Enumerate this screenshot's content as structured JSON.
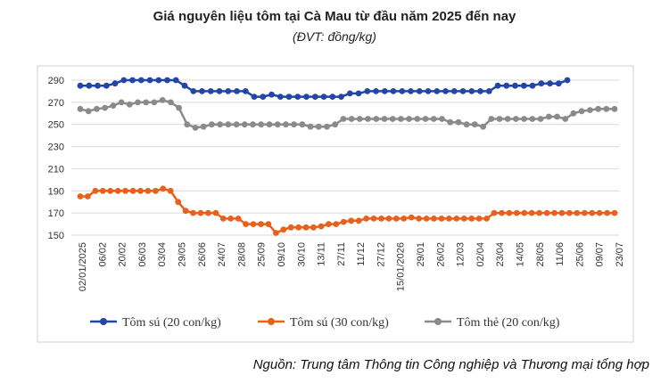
{
  "title": "Giá nguyên liệu tôm tại Cà Mau từ đầu năm 2025 đến nay",
  "subtitle": "(ĐVT: đồng/kg)",
  "source": "Nguồn: Trung tâm Thông tin Công nghiệp và Thương mại tổng hợp",
  "colors": {
    "series1": "#2246a8",
    "series2": "#e8601c",
    "series3": "#8a8a8a",
    "grid": "#d9d9d9",
    "frame": "#d0d0d0"
  },
  "chart_data": {
    "type": "line",
    "title": "Giá nguyên liệu tôm tại Cà Mau từ đầu năm 2025 đến nay",
    "ylabel": "",
    "xlabel": "",
    "ylim": [
      150,
      290
    ],
    "yticks": [
      150,
      170,
      190,
      210,
      230,
      250,
      270,
      290
    ],
    "grid": true,
    "legend_position": "bottom",
    "x_tick_labels": [
      "02/01/2025",
      "06/02",
      "20/02",
      "06/03",
      "03/04",
      "29/05",
      "26/06",
      "24/07",
      "28/08",
      "25/09",
      "09/10",
      "30/10",
      "13/11",
      "27/11",
      "11/12",
      "27/12",
      "15/01/2026",
      "29/01",
      "26/02",
      "12/03",
      "02/04",
      "23/04",
      "14/05",
      "28/05",
      "11/06",
      "25/06",
      "09/07",
      "23/07"
    ],
    "series": [
      {
        "name": "Tôm sú (20 con/kg)",
        "values": [
          285,
          285,
          285,
          285,
          287,
          290,
          290,
          290,
          290,
          290,
          290,
          290,
          285,
          280,
          280,
          280,
          280,
          280,
          280,
          280,
          275,
          275,
          277,
          275,
          275,
          275,
          275,
          275,
          275,
          275,
          275,
          278,
          278,
          280,
          280,
          280,
          280,
          280,
          280,
          280,
          280,
          280,
          280,
          280,
          280,
          280,
          280,
          280,
          285,
          285,
          285,
          285,
          285,
          287,
          287,
          287,
          290
        ]
      },
      {
        "name": "Tôm sú (30 con/kg)",
        "values": [
          185,
          185,
          190,
          190,
          190,
          190,
          190,
          190,
          190,
          190,
          190,
          192,
          190,
          180,
          172,
          170,
          170,
          170,
          170,
          165,
          165,
          165,
          160,
          160,
          160,
          160,
          152,
          155,
          157,
          157,
          157,
          157,
          158,
          160,
          160,
          162,
          163,
          163,
          165,
          165,
          165,
          165,
          165,
          165,
          166,
          165,
          165,
          165,
          165,
          165,
          165,
          165,
          165,
          165,
          165,
          170,
          170,
          170,
          170,
          170,
          170,
          170,
          170,
          170,
          170,
          170,
          170,
          170,
          170,
          170,
          170,
          170
        ]
      },
      {
        "name": "Tôm thẻ (20 con/kg)",
        "values": [
          264,
          262,
          264,
          265,
          267,
          270,
          268,
          270,
          270,
          270,
          272,
          270,
          265,
          250,
          247,
          248,
          250,
          250,
          250,
          250,
          250,
          250,
          250,
          250,
          250,
          250,
          250,
          250,
          248,
          248,
          248,
          250,
          255,
          255,
          255,
          255,
          255,
          255,
          255,
          255,
          255,
          255,
          255,
          255,
          255,
          252,
          252,
          250,
          250,
          248,
          255,
          255,
          255,
          255,
          255,
          255,
          255,
          257,
          257,
          255,
          260,
          262,
          263,
          264,
          264,
          264
        ]
      }
    ]
  }
}
